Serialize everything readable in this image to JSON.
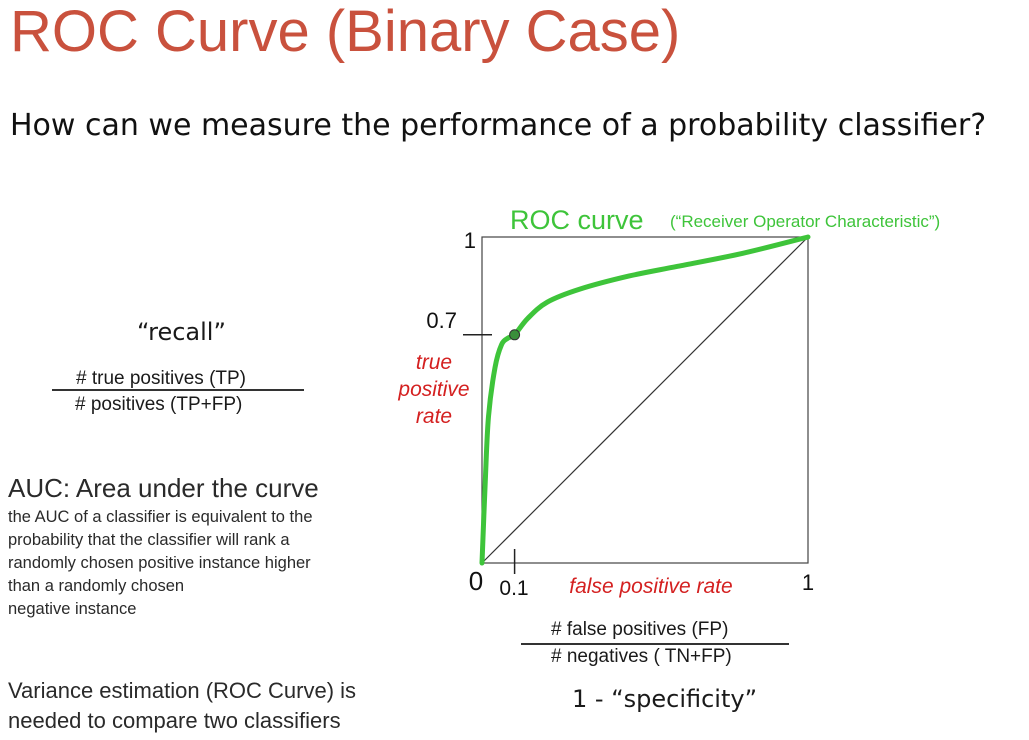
{
  "slide": {
    "title": "ROC Curve (Binary Case)",
    "question": "How can we measure the performance of a probability classifier?"
  },
  "recall": {
    "label": "“recall”",
    "numerator": "# true positives (TP)",
    "denominator": "#  positives (TP+FP)"
  },
  "auc": {
    "title": "AUC: Area under the curve",
    "lines": [
      "the AUC of a classifier is equivalent to the",
      "probability that the classifier will rank a",
      "randomly chosen positive instance higher",
      "than a randomly chosen",
      "negative instance"
    ]
  },
  "variance": {
    "lines": [
      "Variance estimation (ROC Curve) is",
      "needed to compare two classifiers"
    ]
  },
  "fpr_formula": {
    "numerator": "# false positives (FP)",
    "denominator": "# negatives ( TN+FP)",
    "alias": "1 - “specificity”"
  },
  "colors": {
    "title": "#c9513d",
    "curve": "#3ec43a",
    "axis_label": "#d42020"
  },
  "chart_data": {
    "type": "line",
    "title": "ROC curve",
    "subtitle": "(“Receiver Operator Characteristic”)",
    "xlabel": "false positive rate",
    "ylabel_lines": [
      "true",
      "positive",
      "rate"
    ],
    "xlim": [
      0,
      1
    ],
    "ylim": [
      0,
      1
    ],
    "x_ticks": [
      "0",
      "0.1",
      "1"
    ],
    "y_ticks": [
      "1",
      "0.7"
    ],
    "series": [
      {
        "x": [
          0,
          0.01,
          0.02,
          0.04,
          0.06,
          0.08,
          0.1,
          0.14,
          0.2,
          0.3,
          0.45,
          0.6,
          0.8,
          1.0
        ],
        "y": [
          0,
          0.25,
          0.45,
          0.6,
          0.67,
          0.69,
          0.7,
          0.75,
          0.8,
          0.84,
          0.88,
          0.91,
          0.95,
          1.0
        ]
      }
    ],
    "reference_line": {
      "x": [
        0,
        1
      ],
      "y": [
        0,
        1
      ]
    },
    "highlight_point": {
      "x": 0.1,
      "y": 0.7
    },
    "grid": false
  }
}
